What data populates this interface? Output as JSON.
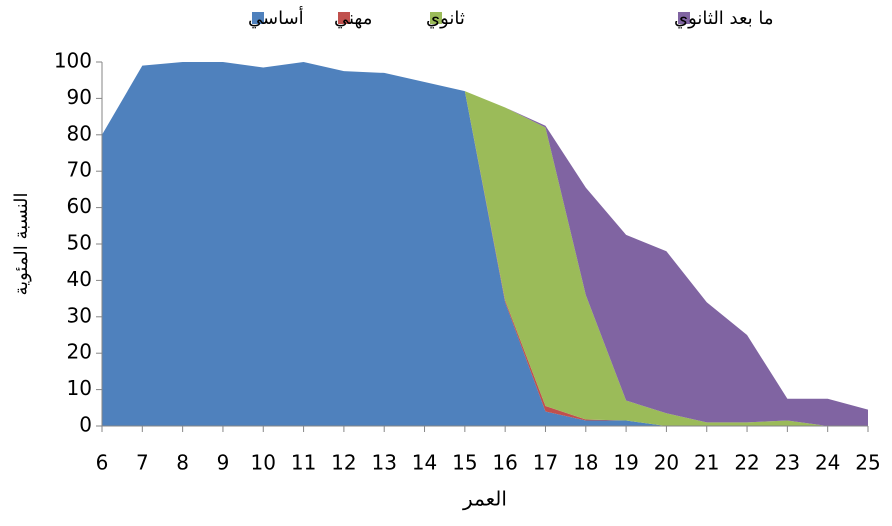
{
  "chart_data": {
    "type": "stacked_area",
    "x_label": "العمر",
    "y_label": "النسبة المئوية",
    "x": [
      6,
      7,
      8,
      9,
      10,
      11,
      12,
      13,
      14,
      15,
      16,
      17,
      18,
      19,
      20,
      21,
      22,
      23,
      24,
      25
    ],
    "series": [
      {
        "name": "أساسي",
        "color": "#4f81bd",
        "values": [
          80,
          99,
          100,
          100,
          98.5,
          100,
          97.5,
          97,
          94.5,
          92,
          34,
          4,
          1.5,
          1.5,
          0,
          0,
          0,
          0,
          0,
          0
        ]
      },
      {
        "name": "مهني",
        "color": "#c0504d",
        "values": [
          0,
          0,
          0,
          0,
          0,
          0,
          0,
          0,
          0,
          0,
          0.5,
          1.5,
          0.3,
          0,
          0,
          0,
          0,
          0,
          0,
          0
        ]
      },
      {
        "name": "ثانوي",
        "color": "#9bbb59",
        "values": [
          0,
          0,
          0,
          0,
          0,
          0,
          0,
          0,
          0,
          0,
          53,
          76.5,
          34.2,
          5.5,
          3.5,
          1,
          1,
          1.5,
          0,
          0
        ]
      },
      {
        "name": "ما بعد الثانوي",
        "color": "#8064a2",
        "values": [
          0,
          0,
          0,
          0,
          0,
          0,
          0,
          0,
          0,
          0,
          0,
          0.5,
          29.5,
          45.5,
          44.5,
          33,
          24,
          6,
          7.5,
          4.5
        ]
      }
    ],
    "xlim": [
      6,
      25
    ],
    "xticks": [
      6,
      7,
      8,
      9,
      10,
      11,
      12,
      13,
      14,
      15,
      16,
      17,
      18,
      19,
      20,
      21,
      22,
      23,
      24,
      25
    ],
    "ylim": [
      0,
      100
    ],
    "yticks": [
      0,
      10,
      20,
      30,
      40,
      50,
      60,
      70,
      80,
      90,
      100
    ]
  }
}
